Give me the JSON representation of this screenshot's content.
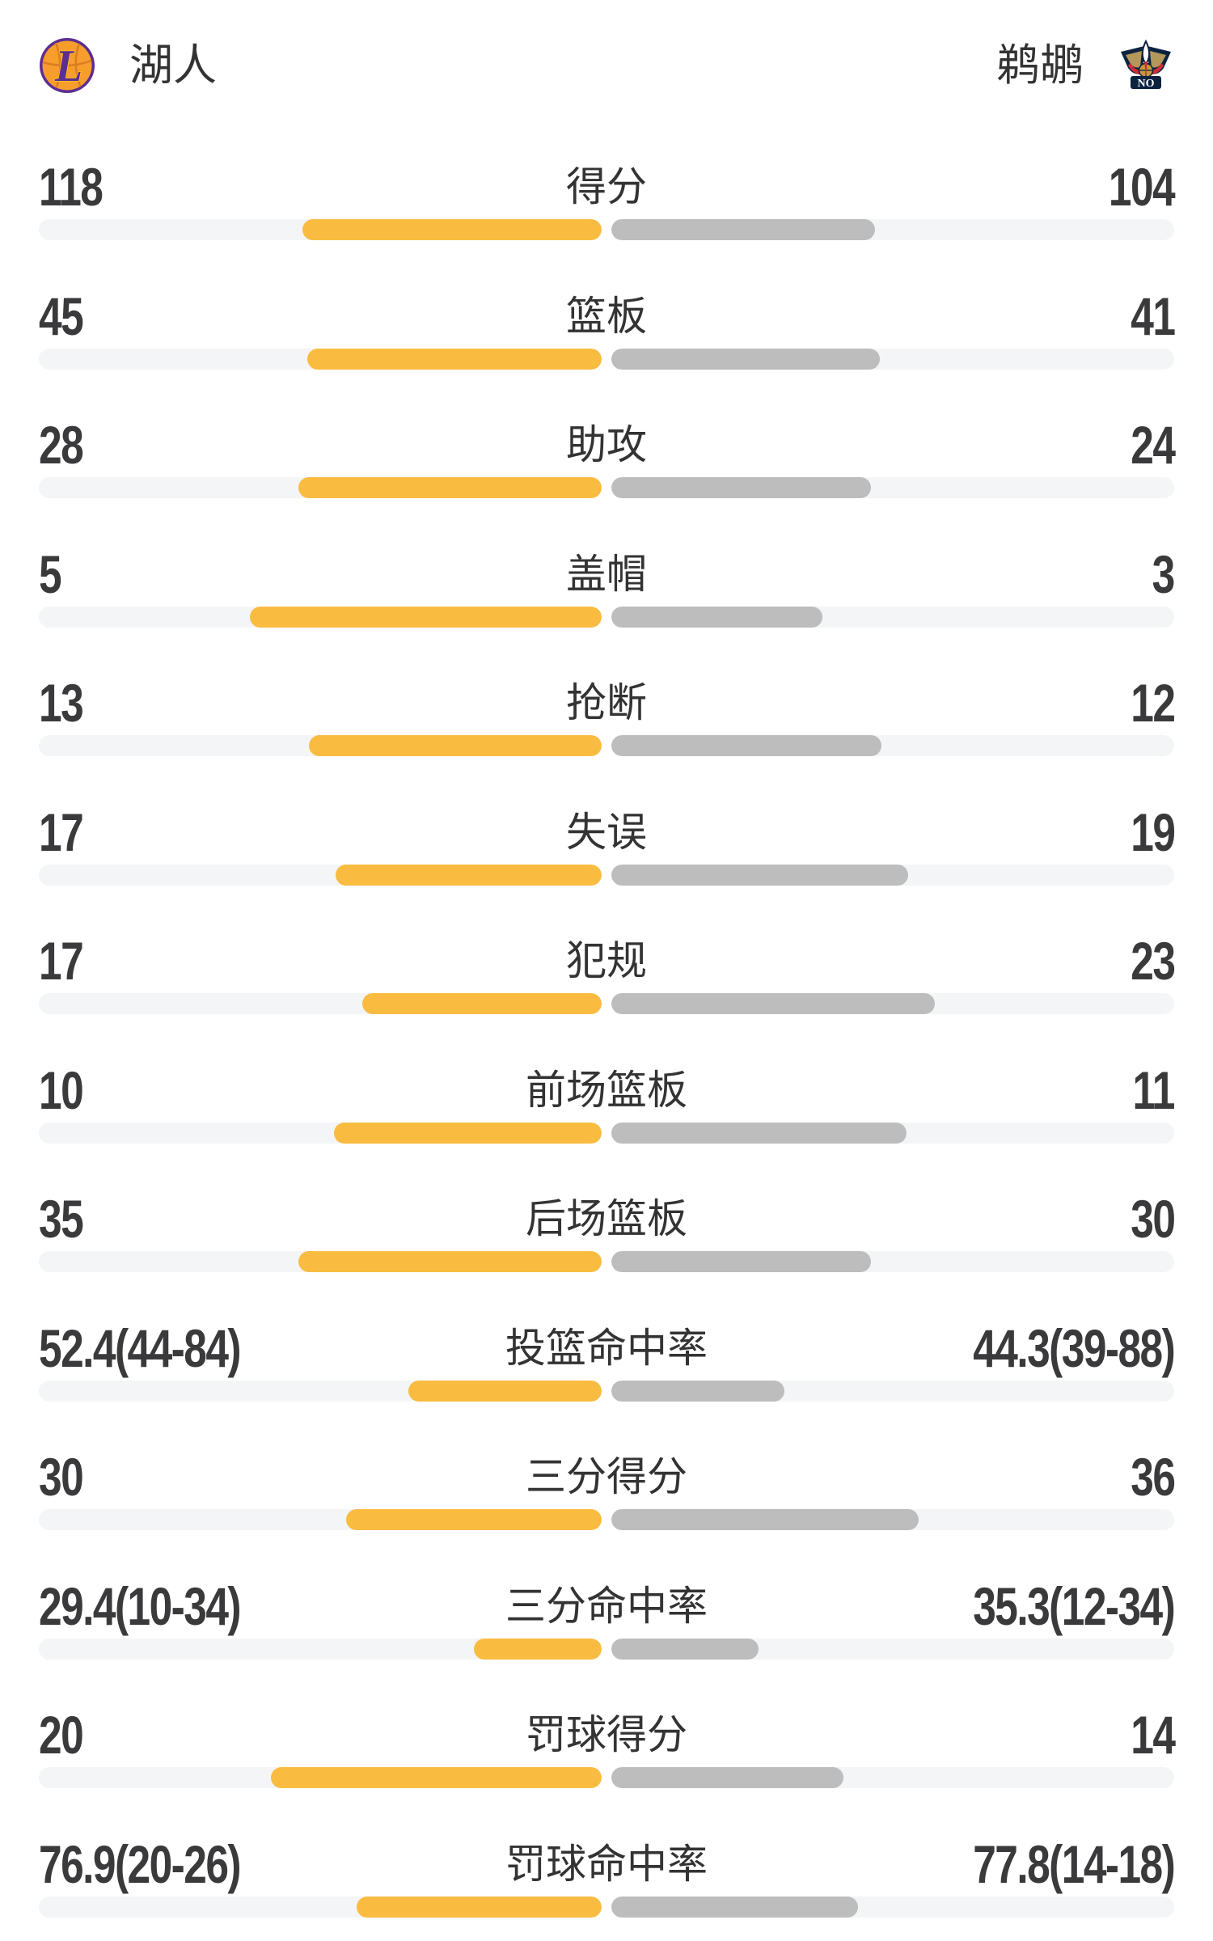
{
  "header": {
    "left_team": {
      "name": "湖人",
      "logo": "lakers-logo-icon"
    },
    "right_team": {
      "name": "鹈鹕",
      "logo": "pelicans-logo-icon"
    }
  },
  "colors": {
    "accent_yellow": "#f9bc41",
    "bar_gray": "#bdbdbd",
    "bar_track": "#f4f5f7",
    "number_text": "#3a3a3c",
    "label_text": "#333333",
    "lakers_purple": "#5c2e91",
    "lakers_gold": "#fdb927",
    "lakers_orange": "#f79d2c",
    "pelicans_navy": "#0c2340",
    "pelicans_gold": "#b4975a",
    "pelicans_red": "#ce2b37"
  },
  "chart_data": {
    "type": "bar",
    "orientation": "horizontal-paired",
    "legend_position": "none",
    "grid": false,
    "bar_rule": "count rows: fill = value/(left+right); percent rows: fill = value/(value+100)",
    "categories": [
      "得分",
      "篮板",
      "助攻",
      "盖帽",
      "抢断",
      "失误",
      "犯规",
      "前场篮板",
      "后场篮板",
      "投篮命中率",
      "三分得分",
      "三分命中率",
      "罚球得分",
      "罚球命中率"
    ],
    "row_types": [
      "count",
      "count",
      "count",
      "count",
      "count",
      "count",
      "count",
      "count",
      "count",
      "percent",
      "count",
      "percent",
      "count",
      "percent"
    ],
    "series": [
      {
        "name": "湖人",
        "values": [
          118,
          45,
          28,
          5,
          13,
          17,
          17,
          10,
          35,
          52.4,
          30,
          29.4,
          20,
          76.9
        ],
        "display": [
          "118",
          "45",
          "28",
          "5",
          "13",
          "17",
          "17",
          "10",
          "35",
          "52.4(44-84)",
          "30",
          "29.4(10-34)",
          "20",
          "76.9(20-26)"
        ]
      },
      {
        "name": "鹈鹕",
        "values": [
          104,
          41,
          24,
          3,
          12,
          19,
          23,
          11,
          30,
          44.3,
          36,
          35.3,
          14,
          77.8
        ],
        "display": [
          "104",
          "41",
          "24",
          "3",
          "12",
          "19",
          "23",
          "11",
          "30",
          "44.3(39-88)",
          "36",
          "35.3(12-34)",
          "14",
          "77.8(14-18)"
        ]
      }
    ]
  }
}
